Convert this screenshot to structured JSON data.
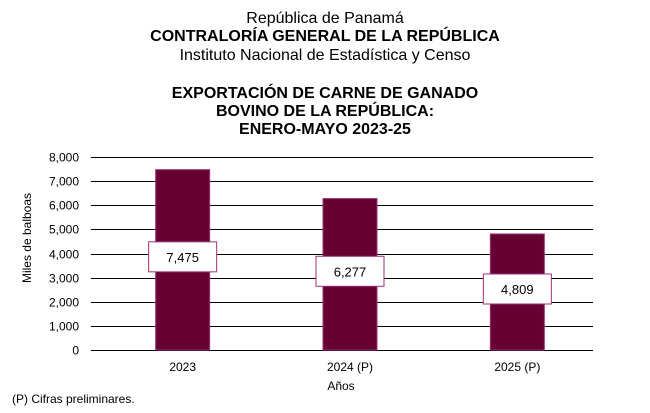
{
  "header": {
    "line1": "República de Panamá",
    "line2": "CONTRALORÍA GENERAL DE LA REPÚBLICA",
    "line3": "Instituto Nacional de Estadística y Censo"
  },
  "footnote": "(P) Cifras preliminares.",
  "colors": {
    "bar_fill": "#660033",
    "bar_border": "#993377",
    "label_border": "#993377",
    "gridline": "#000000"
  },
  "chart_data": {
    "type": "bar",
    "title_lines": [
      "EXPORTACIÓN DE CARNE DE GANADO",
      "BOVINO DE LA REPÚBLICA:",
      "ENERO-MAYO 2023-25"
    ],
    "categories": [
      "2023",
      "2024 (P)",
      "2025 (P)"
    ],
    "values": [
      7475,
      6277,
      4809
    ],
    "data_labels": [
      "7,475",
      "6,277",
      "4,809"
    ],
    "xlabel": "Años",
    "ylabel": "Miles de balboas",
    "ylim": [
      0,
      8000
    ],
    "yticks": [
      0,
      1000,
      2000,
      3000,
      4000,
      5000,
      6000,
      7000,
      8000
    ],
    "ytick_labels": [
      "0",
      "1,000",
      "2,000",
      "3,000",
      "4,000",
      "5,000",
      "6,000",
      "7,000",
      "8,000"
    ],
    "grid": true,
    "legend": "none"
  }
}
